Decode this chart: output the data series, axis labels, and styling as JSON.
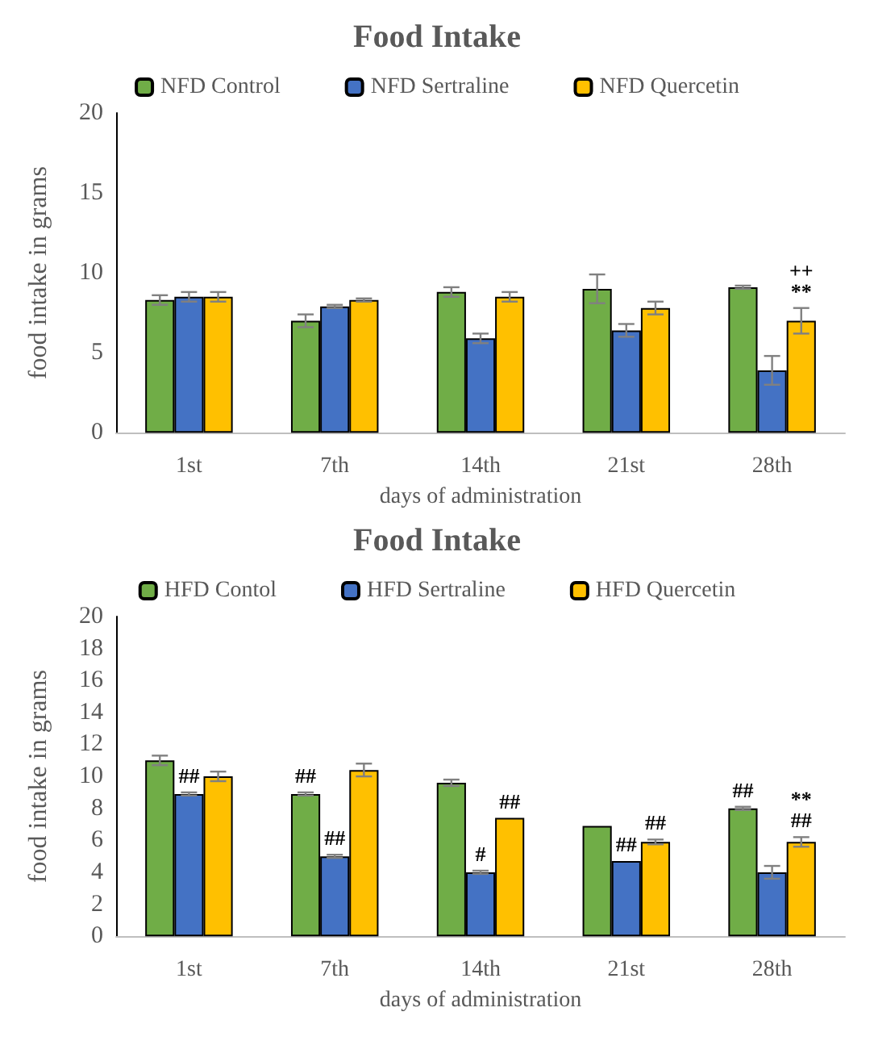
{
  "chart_data": [
    {
      "type": "bar",
      "title": "Food Intake",
      "xlabel": "days of administration",
      "ylabel": "food intake in grams",
      "categories": [
        "1st",
        "7th",
        "14th",
        "21st",
        "28th"
      ],
      "ylim": [
        0,
        20
      ],
      "yticks": [
        0,
        5,
        10,
        15,
        20
      ],
      "grid": false,
      "legend": "top",
      "series": [
        {
          "name": "NFD Control",
          "color": "#70ad47",
          "values": [
            8.3,
            7.0,
            8.8,
            9.0,
            9.1
          ],
          "errors": [
            0.3,
            0.4,
            0.3,
            0.9,
            0.1
          ]
        },
        {
          "name": "NFD Sertraline",
          "color": "#4472c4",
          "values": [
            8.5,
            7.9,
            5.9,
            6.4,
            3.9
          ],
          "errors": [
            0.3,
            0.1,
            0.3,
            0.4,
            0.9
          ]
        },
        {
          "name": "NFD Quercetin",
          "color": "#ffc000",
          "values": [
            8.5,
            8.3,
            8.5,
            7.8,
            7.0
          ],
          "errors": [
            0.3,
            0.1,
            0.3,
            0.4,
            0.8
          ],
          "value_labels": [
            null,
            null,
            null,
            null,
            "++\n**"
          ]
        }
      ]
    },
    {
      "type": "bar",
      "title": "Food Intake",
      "xlabel": "days of administration",
      "ylabel": "food intake in grams",
      "categories": [
        "1st",
        "7th",
        "14th",
        "21st",
        "28th"
      ],
      "ylim": [
        0,
        20
      ],
      "yticks": [
        0,
        2,
        4,
        6,
        8,
        10,
        12,
        14,
        16,
        18,
        20
      ],
      "grid": false,
      "legend": "top",
      "series": [
        {
          "name": "HFD Contol",
          "color": "#70ad47",
          "values": [
            11.0,
            8.9,
            9.6,
            6.9,
            8.0
          ],
          "errors": [
            0.3,
            0.1,
            0.2,
            null,
            0.1
          ],
          "value_labels": [
            null,
            "##",
            null,
            null,
            "##"
          ]
        },
        {
          "name": "HFD Sertraline",
          "color": "#4472c4",
          "values": [
            8.9,
            5.0,
            4.0,
            4.7,
            4.0
          ],
          "errors": [
            0.1,
            0.1,
            0.1,
            null,
            0.4
          ],
          "value_labels": [
            "##",
            "##",
            "#",
            "##",
            null
          ]
        },
        {
          "name": "HFD Quercetin",
          "color": "#ffc000",
          "values": [
            10.0,
            10.4,
            7.4,
            5.9,
            5.9
          ],
          "errors": [
            0.3,
            0.4,
            null,
            0.15,
            0.3
          ],
          "value_labels": [
            null,
            null,
            "##",
            "##",
            "**\n##"
          ]
        }
      ]
    }
  ]
}
